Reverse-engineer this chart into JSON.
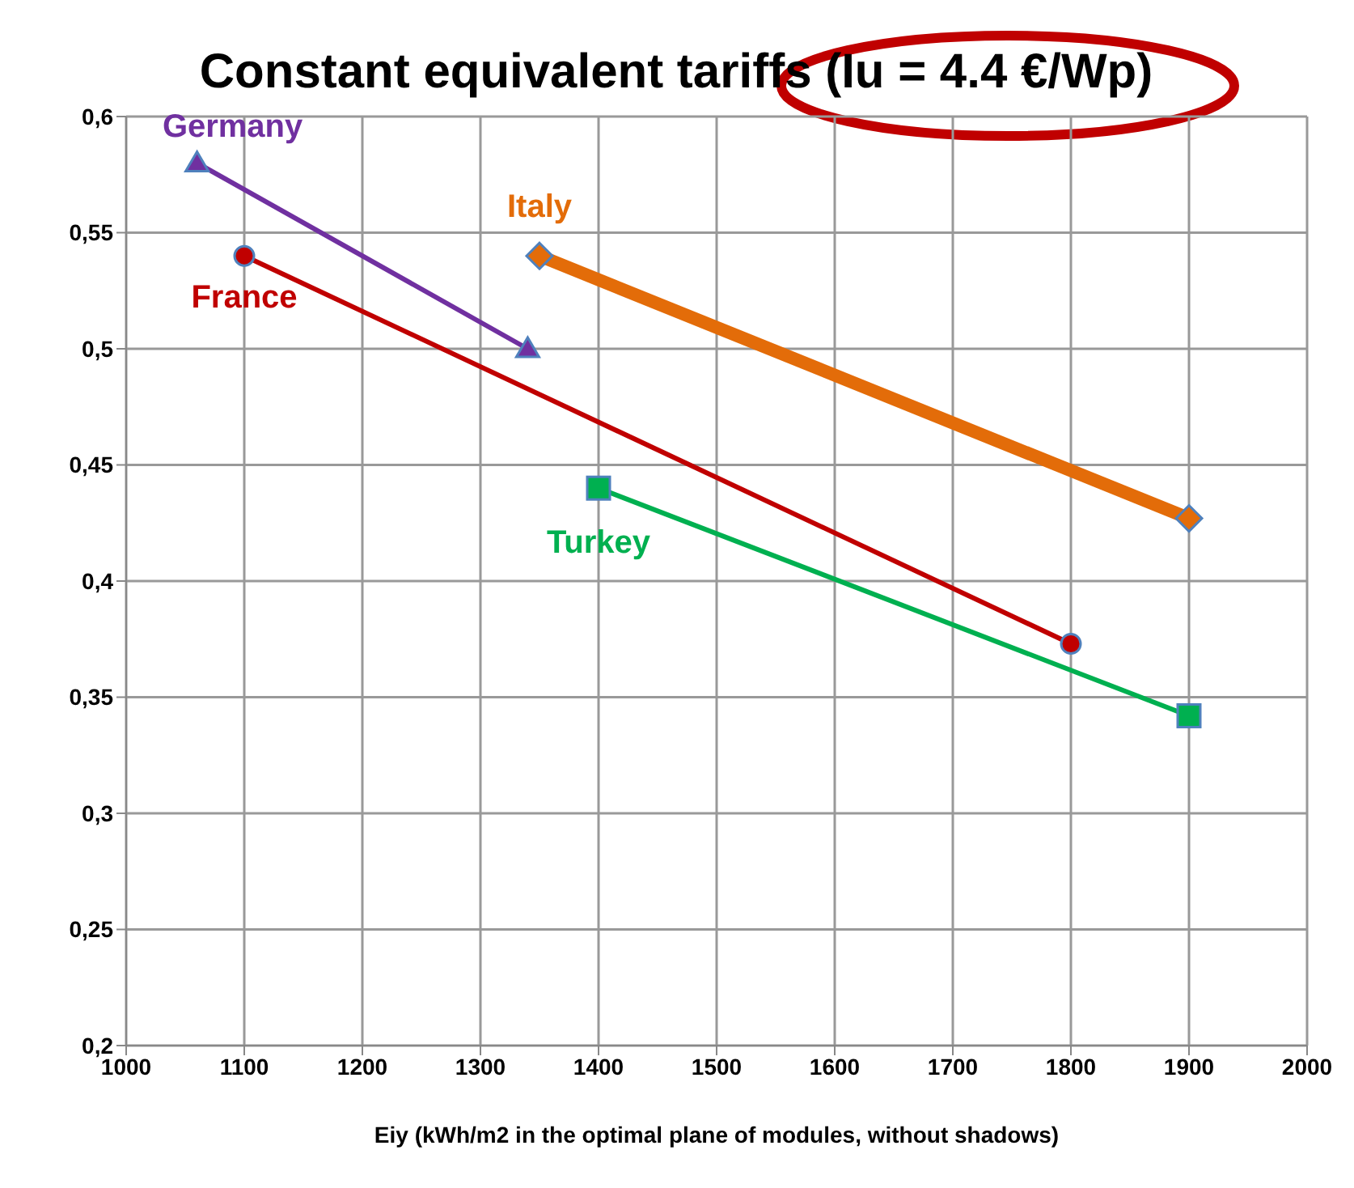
{
  "chart_data": {
    "type": "line",
    "title": "Constant equivalent tariffs (Iu = 4.4 €/Wp)",
    "xlabel": "Eiy (kWh/m2 in the optimal plane of modules, without shadows)",
    "series": [
      {
        "name": "Germany",
        "color": "#7030a0",
        "marker": "triangle",
        "x": [
          1060,
          1340
        ],
        "values": [
          0.58,
          0.5
        ]
      },
      {
        "name": "France",
        "color": "#c00000",
        "marker": "circle",
        "x": [
          1100,
          1800
        ],
        "values": [
          0.54,
          0.373
        ]
      },
      {
        "name": "Italy",
        "color": "#e36c09",
        "marker": "diamond",
        "x": [
          1350,
          1900
        ],
        "values": [
          0.54,
          0.427
        ]
      },
      {
        "name": "Turkey",
        "color": "#00b050",
        "marker": "square",
        "x": [
          1400,
          1900
        ],
        "values": [
          0.44,
          0.342
        ]
      }
    ],
    "xlim": [
      1000,
      2000
    ],
    "xticks": [
      1000,
      1100,
      1200,
      1300,
      1400,
      1500,
      1600,
      1700,
      1800,
      1900,
      2000
    ],
    "ylim": [
      0.2,
      0.6
    ],
    "yticks": [
      {
        "value": 0.2,
        "label": "0,2"
      },
      {
        "value": 0.25,
        "label": "0,25"
      },
      {
        "value": 0.3,
        "label": "0,3"
      },
      {
        "value": 0.35,
        "label": "0,35"
      },
      {
        "value": 0.4,
        "label": "0,4"
      },
      {
        "value": 0.45,
        "label": "0,45"
      },
      {
        "value": 0.5,
        "label": "0,5"
      },
      {
        "value": 0.55,
        "label": "0,55"
      },
      {
        "value": 0.6,
        "label": "0,6"
      }
    ],
    "grid": true
  }
}
